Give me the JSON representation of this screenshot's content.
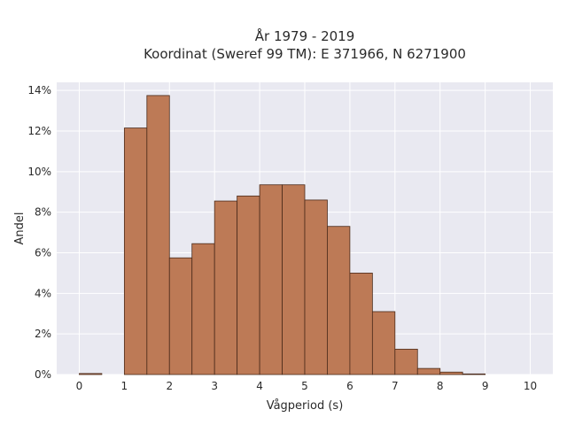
{
  "chart_data": {
    "type": "bar",
    "title_line1": "År 1979 - 2019",
    "title_line2": "Koordinat (Sweref 99 TM): E 371966, N 6271900",
    "xlabel": "Vågperiod (s)",
    "ylabel": "Andel",
    "xlim": [
      -0.5,
      10.5
    ],
    "ylim": [
      0,
      14.4
    ],
    "x_ticks": [
      "0",
      "1",
      "2",
      "3",
      "4",
      "5",
      "6",
      "7",
      "8",
      "9",
      "10"
    ],
    "y_ticks": [
      "0%",
      "2%",
      "4%",
      "6%",
      "8%",
      "10%",
      "12%",
      "14%"
    ],
    "bin_width": 0.5,
    "bins": [
      {
        "x0": 0.0,
        "value": 0.05
      },
      {
        "x0": 1.0,
        "value": 12.15
      },
      {
        "x0": 1.5,
        "value": 13.75
      },
      {
        "x0": 2.0,
        "value": 5.75
      },
      {
        "x0": 2.5,
        "value": 6.45
      },
      {
        "x0": 3.0,
        "value": 8.55
      },
      {
        "x0": 3.5,
        "value": 8.8
      },
      {
        "x0": 4.0,
        "value": 9.35
      },
      {
        "x0": 4.5,
        "value": 9.35
      },
      {
        "x0": 5.0,
        "value": 8.6
      },
      {
        "x0": 5.5,
        "value": 7.3
      },
      {
        "x0": 6.0,
        "value": 5.0
      },
      {
        "x0": 6.5,
        "value": 3.1
      },
      {
        "x0": 7.0,
        "value": 1.25
      },
      {
        "x0": 7.5,
        "value": 0.3
      },
      {
        "x0": 8.0,
        "value": 0.12
      },
      {
        "x0": 8.5,
        "value": 0.03
      }
    ],
    "bar_color": "#bd7a56",
    "bar_edge_color": "#4a2a1a",
    "plot_background": "#e9e9f1",
    "grid": true,
    "grid_color": "#ffffff"
  }
}
